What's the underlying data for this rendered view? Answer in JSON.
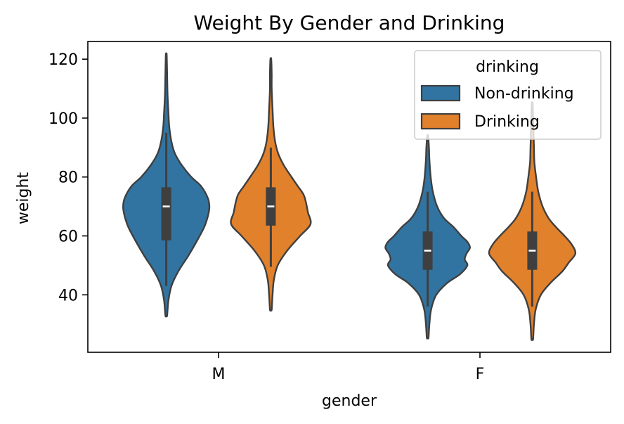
{
  "chart_data": {
    "type": "violin",
    "title": "Weight By Gender and Drinking",
    "xlabel": "gender",
    "ylabel": "weight",
    "categories": [
      "M",
      "F"
    ],
    "yticks": [
      40,
      60,
      80,
      100,
      120
    ],
    "ylim": [
      20.5,
      126
    ],
    "legend": {
      "title": "drinking",
      "placement": "upper-right"
    },
    "series": [
      {
        "name": "Non-drinking",
        "color": "#3274a1",
        "groups": [
          {
            "category": "M",
            "min": 33,
            "max": 121.5,
            "q1": 58.5,
            "median": 70,
            "q3": 76.5,
            "whisker_low": 43,
            "whisker_high": 95,
            "density": [
              [
                33,
                0.02
              ],
              [
                38,
                0.05
              ],
              [
                43,
                0.12
              ],
              [
                48,
                0.28
              ],
              [
                53,
                0.5
              ],
              [
                58,
                0.7
              ],
              [
                63,
                0.88
              ],
              [
                67,
                0.97
              ],
              [
                70,
                1.0
              ],
              [
                73,
                0.96
              ],
              [
                77,
                0.8
              ],
              [
                80,
                0.58
              ],
              [
                84,
                0.36
              ],
              [
                88,
                0.2
              ],
              [
                92,
                0.12
              ],
              [
                97,
                0.07
              ],
              [
                102,
                0.05
              ],
              [
                108,
                0.03
              ],
              [
                115,
                0.02
              ],
              [
                121.5,
                0.01
              ]
            ]
          },
          {
            "category": "F",
            "min": 25.5,
            "max": 94,
            "q1": 48.5,
            "median": 55,
            "q3": 61.5,
            "whisker_low": 36,
            "whisker_high": 75,
            "density": [
              [
                25.5,
                0.02
              ],
              [
                30,
                0.04
              ],
              [
                35,
                0.08
              ],
              [
                40,
                0.2
              ],
              [
                44,
                0.45
              ],
              [
                47,
                0.75
              ],
              [
                50,
                0.92
              ],
              [
                52,
                0.86
              ],
              [
                54,
                0.9
              ],
              [
                56,
                0.98
              ],
              [
                58,
                0.92
              ],
              [
                60,
                0.78
              ],
              [
                63,
                0.6
              ],
              [
                66,
                0.38
              ],
              [
                70,
                0.22
              ],
              [
                75,
                0.12
              ],
              [
                80,
                0.07
              ],
              [
                86,
                0.04
              ],
              [
                90,
                0.03
              ],
              [
                94,
                0.01
              ]
            ]
          }
        ]
      },
      {
        "name": "Drinking",
        "color": "#e1812c",
        "groups": [
          {
            "category": "M",
            "min": 35,
            "max": 120,
            "q1": 63.5,
            "median": 70,
            "q3": 76.5,
            "whisker_low": 49.5,
            "whisker_high": 90,
            "density": [
              [
                35,
                0.02
              ],
              [
                40,
                0.04
              ],
              [
                45,
                0.07
              ],
              [
                50,
                0.16
              ],
              [
                55,
                0.38
              ],
              [
                60,
                0.68
              ],
              [
                64,
                0.92
              ],
              [
                68,
                0.86
              ],
              [
                71,
                0.82
              ],
              [
                74,
                0.76
              ],
              [
                77,
                0.62
              ],
              [
                80,
                0.48
              ],
              [
                84,
                0.3
              ],
              [
                88,
                0.17
              ],
              [
                92,
                0.1
              ],
              [
                97,
                0.06
              ],
              [
                103,
                0.04
              ],
              [
                110,
                0.02
              ],
              [
                115,
                0.02
              ],
              [
                120,
                0.01
              ]
            ]
          },
          {
            "category": "F",
            "min": 25,
            "max": 105,
            "q1": 48.5,
            "median": 55,
            "q3": 61.5,
            "whisker_low": 36,
            "whisker_high": 75,
            "density": [
              [
                25,
                0.02
              ],
              [
                30,
                0.04
              ],
              [
                35,
                0.08
              ],
              [
                40,
                0.2
              ],
              [
                44,
                0.42
              ],
              [
                48,
                0.7
              ],
              [
                51,
                0.85
              ],
              [
                54,
                1.0
              ],
              [
                57,
                0.92
              ],
              [
                60,
                0.75
              ],
              [
                63,
                0.55
              ],
              [
                66,
                0.38
              ],
              [
                70,
                0.24
              ],
              [
                75,
                0.14
              ],
              [
                80,
                0.09
              ],
              [
                85,
                0.05
              ],
              [
                90,
                0.04
              ],
              [
                95,
                0.03
              ],
              [
                100,
                0.02
              ],
              [
                105,
                0.01
              ]
            ]
          }
        ]
      }
    ]
  }
}
